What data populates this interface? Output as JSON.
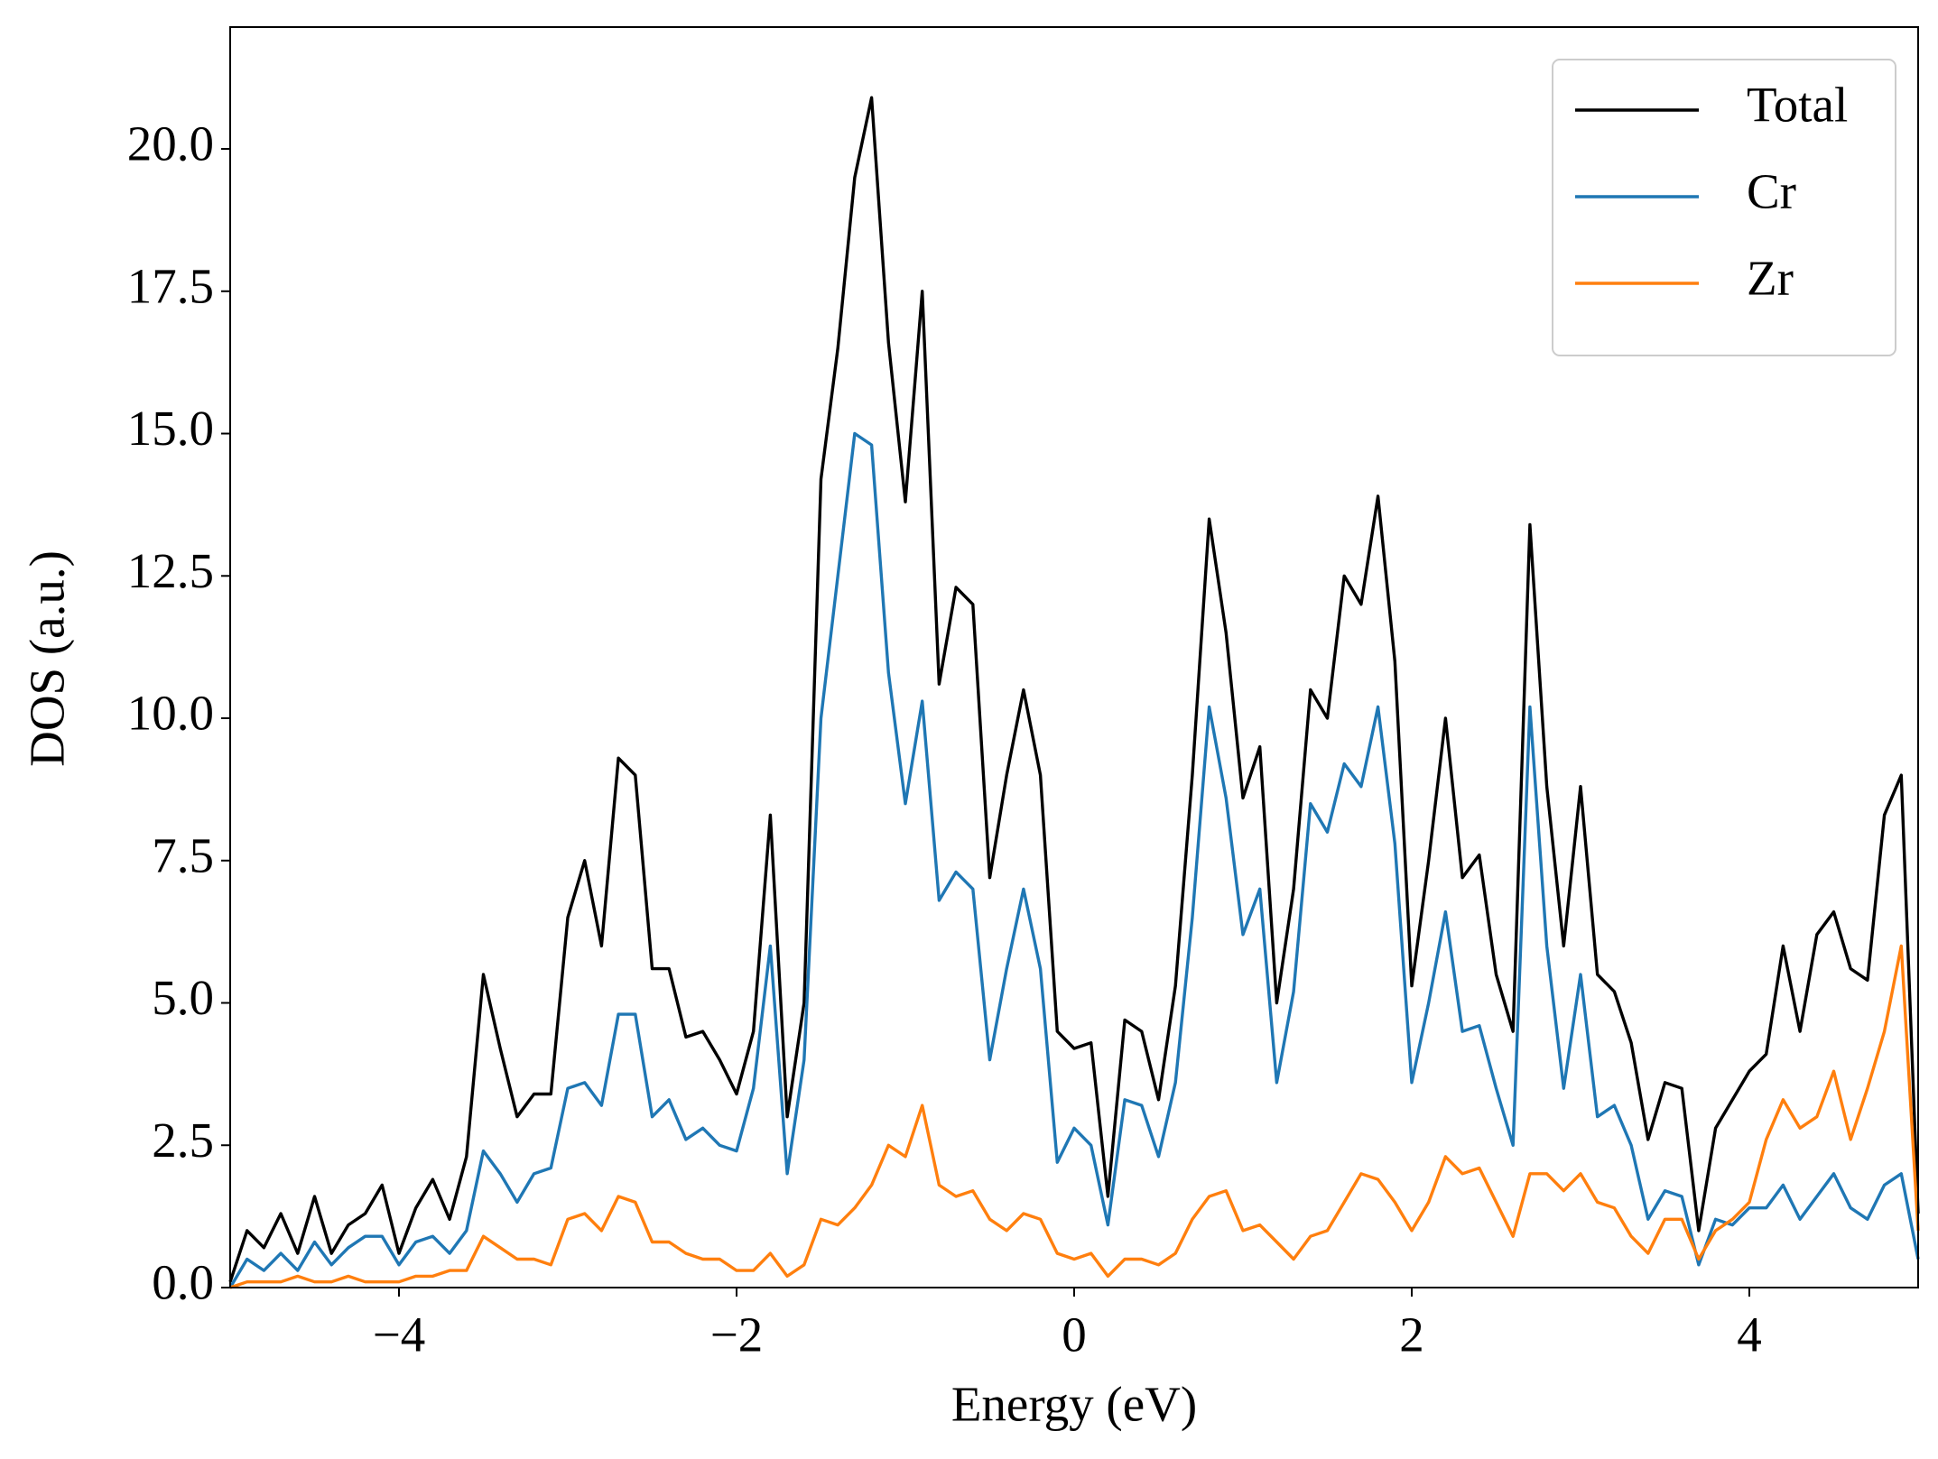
{
  "chart_data": {
    "type": "line",
    "xlabel": "Energy (eV)",
    "ylabel": "DOS (a.u.)",
    "x": [
      -5,
      -4.9,
      -4.8,
      -4.7,
      -4.6,
      -4.5,
      -4.4,
      -4.3,
      -4.2,
      -4.1,
      -4,
      -3.9,
      -3.8,
      -3.7,
      -3.6,
      -3.5,
      -3.4,
      -3.3,
      -3.2,
      -3.1,
      -3,
      -2.9,
      -2.8,
      -2.7,
      -2.6,
      -2.5,
      -2.4,
      -2.3,
      -2.2,
      -2.1,
      -2,
      -1.9,
      -1.8,
      -1.7,
      -1.6,
      -1.5,
      -1.4,
      -1.3,
      -1.2,
      -1.1,
      -1,
      -0.9,
      -0.8,
      -0.7,
      -0.6,
      -0.5,
      -0.4,
      -0.3,
      -0.2,
      -0.1,
      0,
      0.1,
      0.2,
      0.3,
      0.4,
      0.5,
      0.6,
      0.7,
      0.8,
      0.9,
      1,
      1.1,
      1.2,
      1.3,
      1.4,
      1.5,
      1.6,
      1.7,
      1.8,
      1.9,
      2,
      2.1,
      2.2,
      2.3,
      2.4,
      2.5,
      2.6,
      2.7,
      2.8,
      2.9,
      3,
      3.1,
      3.2,
      3.3,
      3.4,
      3.5,
      3.6,
      3.7,
      3.8,
      3.9,
      4,
      4.1,
      4.2,
      4.3,
      4.4,
      4.5,
      4.6,
      4.7,
      4.8,
      4.9,
      5
    ],
    "series": [
      {
        "name": "Total",
        "color": "#000000",
        "values": [
          0.1,
          1.0,
          0.7,
          1.3,
          0.6,
          1.6,
          0.6,
          1.1,
          1.3,
          1.8,
          0.6,
          1.4,
          1.9,
          1.2,
          2.3,
          5.5,
          4.2,
          3.0,
          3.4,
          3.4,
          6.5,
          7.5,
          6.0,
          9.3,
          9.0,
          5.6,
          5.6,
          4.4,
          4.5,
          4.0,
          3.4,
          4.5,
          8.3,
          3.0,
          5.0,
          14.2,
          16.5,
          19.5,
          20.9,
          16.6,
          13.8,
          17.5,
          10.6,
          12.3,
          12.0,
          7.2,
          9.0,
          10.5,
          9.0,
          4.5,
          4.2,
          4.3,
          1.6,
          4.7,
          4.5,
          3.3,
          5.3,
          9.0,
          13.5,
          11.5,
          8.6,
          9.5,
          5.0,
          7.0,
          10.5,
          10.0,
          12.5,
          12.0,
          13.9,
          11.0,
          5.3,
          7.5,
          10.0,
          7.2,
          7.6,
          5.5,
          4.5,
          13.4,
          8.8,
          6.0,
          8.8,
          5.5,
          5.2,
          4.3,
          2.6,
          3.6,
          3.5,
          1.0,
          2.8,
          3.3,
          3.8,
          4.1,
          6.0,
          4.5,
          6.2,
          6.6,
          5.6,
          5.4,
          8.3,
          9.0,
          1.3
        ]
      },
      {
        "name": "Cr",
        "color": "#1f77b4",
        "values": [
          0.0,
          0.5,
          0.3,
          0.6,
          0.3,
          0.8,
          0.4,
          0.7,
          0.9,
          0.9,
          0.4,
          0.8,
          0.9,
          0.6,
          1.0,
          2.4,
          2.0,
          1.5,
          2.0,
          2.1,
          3.5,
          3.6,
          3.2,
          4.8,
          4.8,
          3.0,
          3.3,
          2.6,
          2.8,
          2.5,
          2.4,
          3.5,
          6.0,
          2.0,
          4.0,
          10.0,
          12.5,
          15.0,
          14.8,
          10.8,
          8.5,
          10.3,
          6.8,
          7.3,
          7.0,
          4.0,
          5.6,
          7.0,
          5.6,
          2.2,
          2.8,
          2.5,
          1.1,
          3.3,
          3.2,
          2.3,
          3.6,
          6.5,
          10.2,
          8.6,
          6.2,
          7.0,
          3.6,
          5.2,
          8.5,
          8.0,
          9.2,
          8.8,
          10.2,
          7.8,
          3.6,
          5.0,
          6.6,
          4.5,
          4.6,
          3.5,
          2.5,
          10.2,
          6.0,
          3.5,
          5.5,
          3.0,
          3.2,
          2.5,
          1.2,
          1.7,
          1.6,
          0.4,
          1.2,
          1.1,
          1.4,
          1.4,
          1.8,
          1.2,
          1.6,
          2.0,
          1.4,
          1.2,
          1.8,
          2.0,
          0.5
        ]
      },
      {
        "name": "Zr",
        "color": "#ff7f0e",
        "values": [
          0.0,
          0.1,
          0.1,
          0.1,
          0.2,
          0.1,
          0.1,
          0.2,
          0.1,
          0.1,
          0.1,
          0.2,
          0.2,
          0.3,
          0.3,
          0.9,
          0.7,
          0.5,
          0.5,
          0.4,
          1.2,
          1.3,
          1.0,
          1.6,
          1.5,
          0.8,
          0.8,
          0.6,
          0.5,
          0.5,
          0.3,
          0.3,
          0.6,
          0.2,
          0.4,
          1.2,
          1.1,
          1.4,
          1.8,
          2.5,
          2.3,
          3.2,
          1.8,
          1.6,
          1.7,
          1.2,
          1.0,
          1.3,
          1.2,
          0.6,
          0.5,
          0.6,
          0.2,
          0.5,
          0.5,
          0.4,
          0.6,
          1.2,
          1.6,
          1.7,
          1.0,
          1.1,
          0.8,
          0.5,
          0.9,
          1.0,
          1.5,
          2.0,
          1.9,
          1.5,
          1.0,
          1.5,
          2.3,
          2.0,
          2.1,
          1.5,
          0.9,
          2.0,
          2.0,
          1.7,
          2.0,
          1.5,
          1.4,
          0.9,
          0.6,
          1.2,
          1.2,
          0.5,
          1.0,
          1.2,
          1.5,
          2.6,
          3.3,
          2.8,
          3.0,
          3.8,
          2.6,
          3.5,
          4.5,
          6.0,
          1.0
        ]
      }
    ],
    "xlim": [
      -5,
      5
    ],
    "ylim": [
      0,
      22.14
    ],
    "xticks": [
      {
        "value": -4,
        "label": "−4"
      },
      {
        "value": -2,
        "label": "−2"
      },
      0,
      2,
      4
    ],
    "yticks": [
      {
        "value": 0,
        "label": "0.0"
      },
      2.5,
      {
        "value": 5,
        "label": "5.0"
      },
      7.5,
      {
        "value": 10,
        "label": "10.0"
      },
      12.5,
      {
        "value": 15,
        "label": "15.0"
      },
      17.5,
      {
        "value": 20,
        "label": "20.0"
      }
    ],
    "legend": "upper right",
    "grid": false
  }
}
